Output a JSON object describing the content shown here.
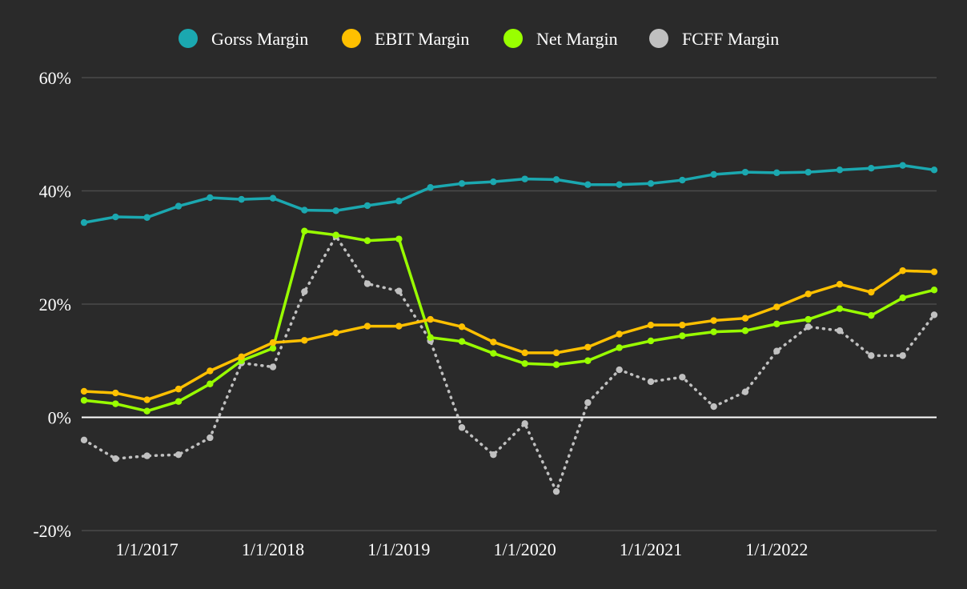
{
  "chart_data": {
    "type": "line",
    "legend_position": "top",
    "grid": true,
    "ylim": [
      -20,
      60
    ],
    "yticks": [
      "-20%",
      "0%",
      "20%",
      "40%",
      "60%"
    ],
    "ytick_values": [
      -20,
      0,
      20,
      40,
      60
    ],
    "xticks": [
      "1/1/2017",
      "1/1/2018",
      "1/1/2019",
      "1/1/2020",
      "1/1/2021",
      "1/1/2022"
    ],
    "x": [
      "7/1/2016",
      "10/1/2016",
      "1/1/2017",
      "4/1/2017",
      "7/1/2017",
      "10/1/2017",
      "1/1/2018",
      "4/1/2018",
      "7/1/2018",
      "10/1/2018",
      "1/1/2019",
      "4/1/2019",
      "7/1/2019",
      "10/1/2019",
      "1/1/2020",
      "4/1/2020",
      "7/1/2020",
      "10/1/2020",
      "1/1/2021",
      "4/1/2021",
      "7/1/2021",
      "10/1/2021",
      "1/1/2022",
      "4/1/2022",
      "7/1/2022",
      "10/1/2022",
      "1/1/2023",
      "4/1/2023"
    ],
    "series": [
      {
        "name": "Gorss Margin",
        "color": "#1ba8b0",
        "style": "solid",
        "values": [
          34.4,
          35.4,
          35.3,
          37.3,
          38.8,
          38.5,
          38.7,
          36.6,
          36.5,
          37.4,
          38.2,
          40.6,
          41.3,
          41.6,
          42.1,
          42.0,
          41.1,
          41.1,
          41.3,
          41.9,
          42.9,
          43.3,
          43.2,
          43.3,
          43.7,
          44.0,
          44.5,
          43.7
        ]
      },
      {
        "name": "EBIT Margin",
        "color": "#ffc000",
        "style": "solid",
        "values": [
          4.6,
          4.3,
          3.1,
          5.0,
          8.2,
          10.7,
          13.2,
          13.6,
          14.9,
          16.1,
          16.1,
          17.3,
          16.0,
          13.3,
          11.4,
          11.4,
          12.4,
          14.7,
          16.3,
          16.3,
          17.1,
          17.5,
          19.5,
          21.8,
          23.5,
          22.1,
          25.9,
          25.7
        ]
      },
      {
        "name": "Net Margin",
        "color": "#99ff00",
        "style": "solid",
        "values": [
          3.0,
          2.4,
          1.1,
          2.8,
          5.9,
          10.0,
          12.2,
          32.9,
          32.2,
          31.2,
          31.5,
          14.1,
          13.4,
          11.3,
          9.5,
          9.3,
          10.0,
          12.3,
          13.5,
          14.4,
          15.1,
          15.3,
          16.5,
          17.3,
          19.2,
          18.0,
          21.1,
          22.5
        ]
      },
      {
        "name": "FCFF Margin",
        "color": "#c0c0c0",
        "style": "dotted",
        "values": [
          -4.0,
          -7.3,
          -6.8,
          -6.6,
          -3.6,
          9.6,
          8.9,
          22.2,
          32.0,
          23.6,
          22.3,
          13.5,
          -1.8,
          -6.6,
          -1.1,
          -13.1,
          2.6,
          8.4,
          6.3,
          7.1,
          1.9,
          4.5,
          11.7,
          16.0,
          15.3,
          10.9,
          10.9,
          18.1
        ]
      }
    ]
  }
}
